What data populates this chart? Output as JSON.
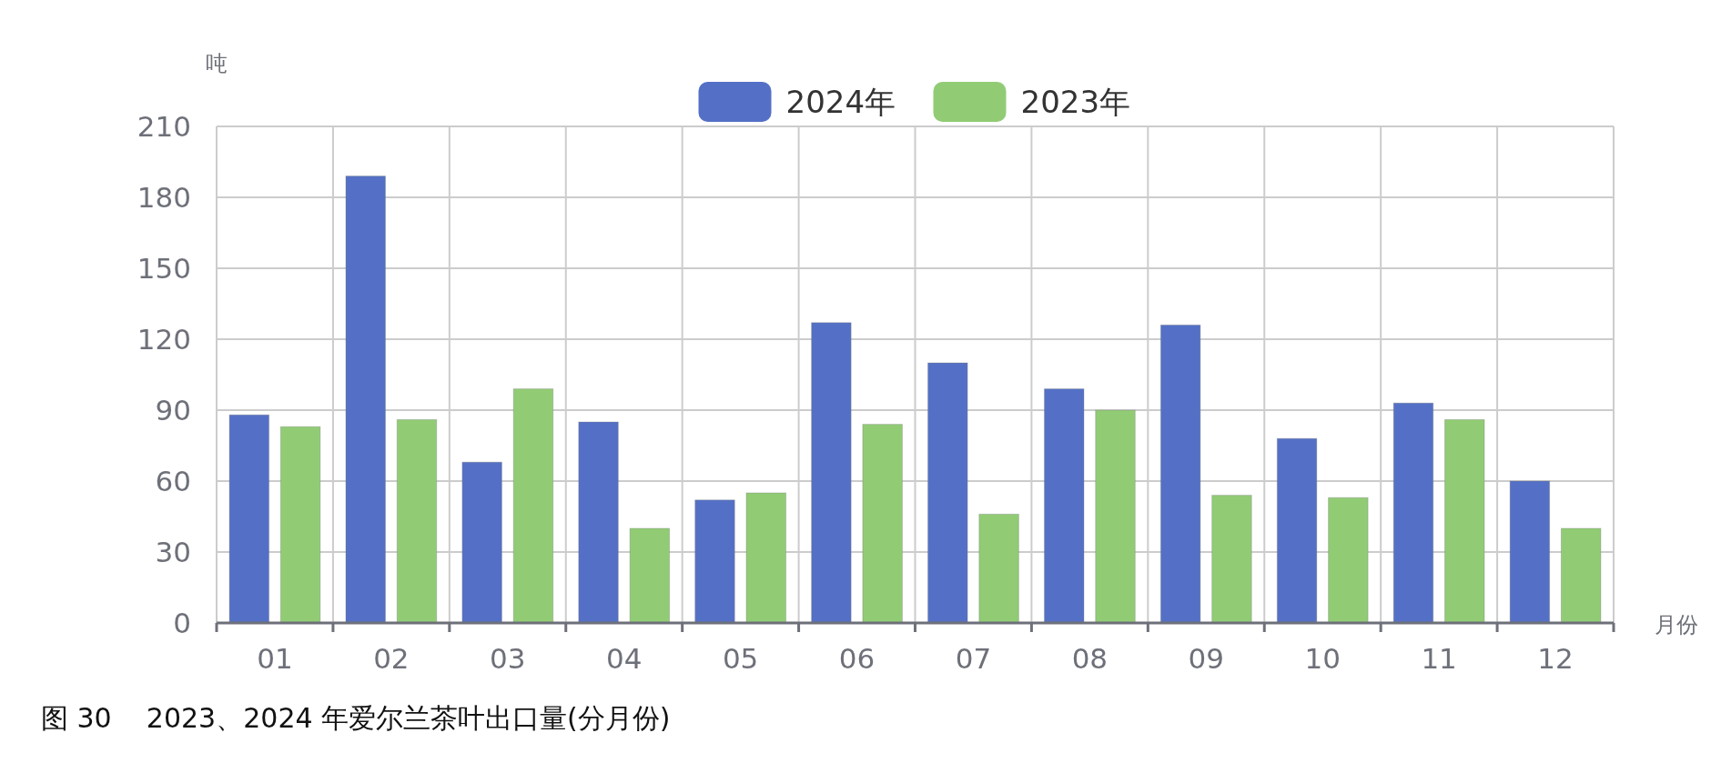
{
  "chart_data": {
    "type": "bar",
    "title": "图 30    2023、2024 年爱尔兰茶叶出口量(分月份)",
    "ylabel": "吨",
    "xlabel": "月份",
    "categories": [
      "01",
      "02",
      "03",
      "04",
      "05",
      "06",
      "07",
      "08",
      "09",
      "10",
      "11",
      "12"
    ],
    "series": [
      {
        "name": "2024年",
        "color": "#5470c6",
        "values": [
          88,
          189,
          68,
          85,
          52,
          127,
          110,
          99,
          126,
          78,
          93,
          60
        ]
      },
      {
        "name": "2023年",
        "color": "#91cc75",
        "values": [
          83,
          86,
          99,
          40,
          55,
          84,
          46,
          90,
          54,
          53,
          86,
          40
        ]
      }
    ],
    "ylim": [
      0,
      210
    ],
    "yticks": [
      0,
      30,
      60,
      90,
      120,
      150,
      180,
      210
    ],
    "grid": true,
    "legend": "top"
  }
}
